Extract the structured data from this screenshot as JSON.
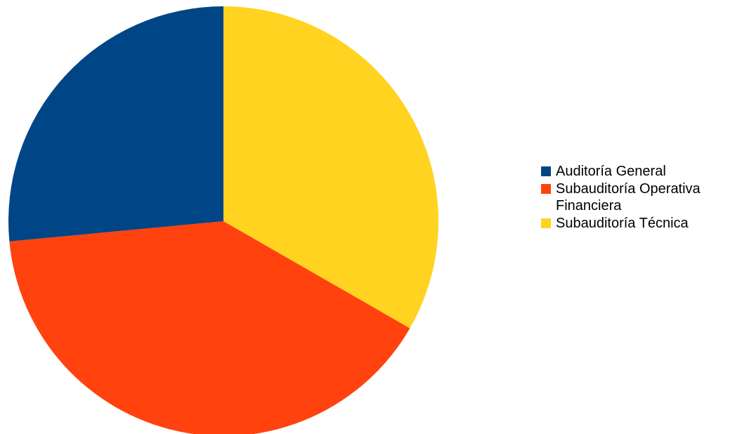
{
  "chart_data": {
    "type": "pie",
    "title": "",
    "start_angle_deg": 0,
    "direction": "clockwise",
    "slices": [
      {
        "label": "Subauditoría Técnica",
        "value": 33.3,
        "color": "#FFD320"
      },
      {
        "label": "Subauditoría Operativa Financiera",
        "value": 40.2,
        "color": "#FF420E"
      },
      {
        "label": "Auditoría General",
        "value": 26.5,
        "color": "#004586"
      }
    ],
    "legend": {
      "position": "right",
      "items": [
        {
          "label": "Auditoría General",
          "color": "#004586"
        },
        {
          "label": "Subauditoría Operativa\nFinanciera",
          "color": "#FF420E"
        },
        {
          "label": "Subauditoría Técnica",
          "color": "#FFD320"
        }
      ]
    }
  }
}
